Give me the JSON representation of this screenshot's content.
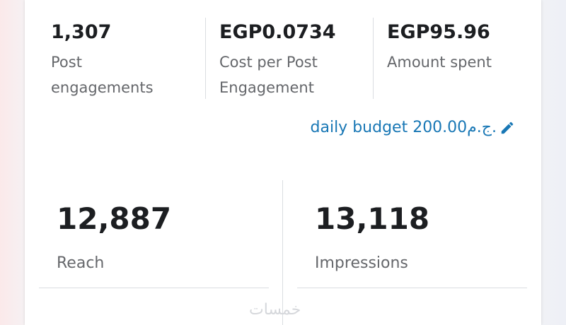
{
  "summary": {
    "metrics": [
      {
        "value": "1,307",
        "label": "Post engagements"
      },
      {
        "value": "EGP0.0734",
        "label": "Cost per Post Engagement"
      },
      {
        "value": "EGP95.96",
        "label": "Amount spent"
      }
    ],
    "budget_link": "daily budget 200.00ج.م."
  },
  "stats": [
    {
      "value": "12,887",
      "label": "Reach"
    },
    {
      "value": "13,118",
      "label": "Impressions"
    }
  ],
  "watermark": "خمسات"
}
